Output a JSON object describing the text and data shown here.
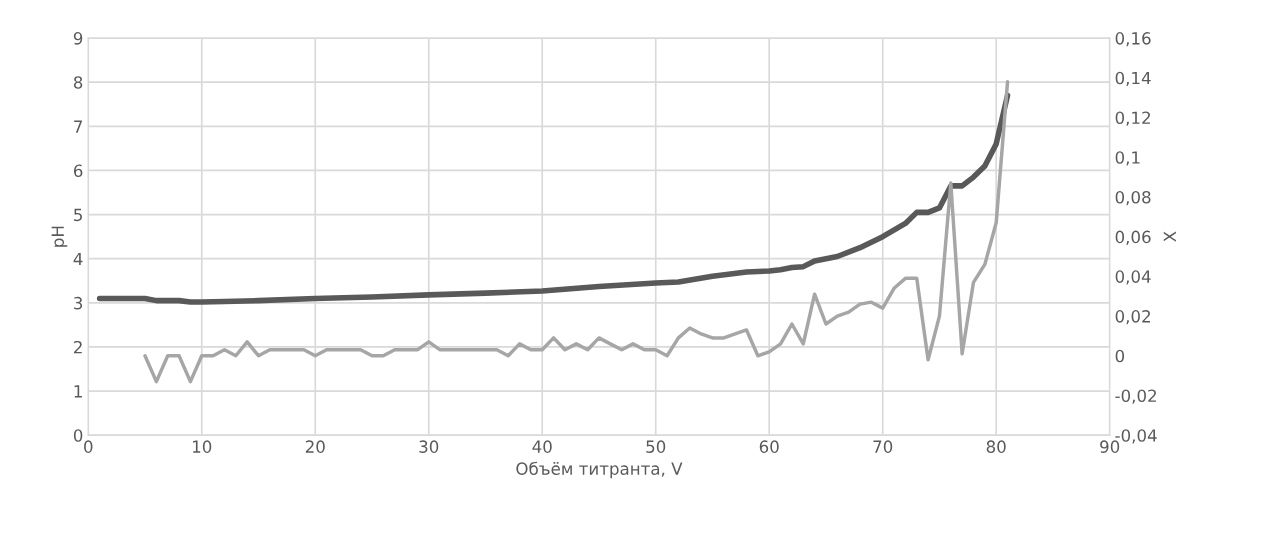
{
  "chart_data": {
    "type": "line",
    "xlabel": "Объём титранта, V",
    "ylabel": "pH",
    "y2label": "X",
    "xlim": [
      0,
      90
    ],
    "xticks": [
      0,
      10,
      20,
      30,
      40,
      50,
      60,
      70,
      80,
      90
    ],
    "ylim": [
      0,
      9
    ],
    "yticks": [
      0,
      1,
      2,
      3,
      4,
      5,
      6,
      7,
      8,
      9
    ],
    "y2lim": [
      -0.04,
      0.16
    ],
    "y2ticks": [
      {
        "value": -0.04,
        "label": "-0,04"
      },
      {
        "value": -0.02,
        "label": "-0,02"
      },
      {
        "value": 0,
        "label": "0"
      },
      {
        "value": 0.02,
        "label": "0,02"
      },
      {
        "value": 0.04,
        "label": "0,04"
      },
      {
        "value": 0.06,
        "label": "0,06"
      },
      {
        "value": 0.08,
        "label": "0,08"
      },
      {
        "value": 0.1,
        "label": "0,1"
      },
      {
        "value": 0.12,
        "label": "0,12"
      },
      {
        "value": 0.14,
        "label": "0,14"
      },
      {
        "value": 0.16,
        "label": "0,16"
      }
    ],
    "grid": true,
    "series": [
      {
        "color": "#595959",
        "x": [
          1,
          5,
          6,
          8,
          9,
          10,
          12,
          15,
          20,
          25,
          30,
          35,
          40,
          45,
          50,
          52,
          55,
          58,
          60,
          61,
          62,
          63,
          64,
          66,
          68,
          70,
          72,
          73,
          74,
          75,
          76,
          77,
          78,
          79,
          80,
          81
        ],
        "values": [
          3.1,
          3.1,
          3.05,
          3.05,
          3.02,
          3.02,
          3.03,
          3.05,
          3.1,
          3.13,
          3.18,
          3.22,
          3.27,
          3.37,
          3.45,
          3.47,
          3.6,
          3.7,
          3.72,
          3.75,
          3.8,
          3.82,
          3.95,
          4.05,
          4.25,
          4.5,
          4.8,
          5.05,
          5.05,
          5.15,
          5.65,
          5.65,
          5.85,
          6.1,
          6.6,
          7.7
        ]
      },
      {
        "color": "#a6a6a6",
        "axis": "y2",
        "x": [
          5,
          6,
          7,
          8,
          9,
          10,
          11,
          12,
          13,
          14,
          15,
          16,
          17,
          18,
          19,
          20,
          21,
          22,
          23,
          24,
          25,
          26,
          27,
          28,
          29,
          30,
          31,
          32,
          33,
          34,
          35,
          36,
          37,
          38,
          39,
          40,
          41,
          42,
          43,
          44,
          45,
          46,
          47,
          48,
          49,
          50,
          51,
          52,
          53,
          54,
          55,
          56,
          57,
          58,
          59,
          60,
          61,
          62,
          63,
          64,
          65,
          66,
          67,
          68,
          69,
          70,
          71,
          72,
          73,
          74,
          75,
          76,
          77,
          78,
          79,
          80,
          81
        ],
        "values": [
          0,
          -0.013,
          0,
          0,
          -0.013,
          0,
          0,
          0.003,
          0,
          0.007,
          0,
          0.003,
          0.003,
          0.003,
          0.003,
          0,
          0.003,
          0.003,
          0.003,
          0.003,
          0,
          0,
          0.003,
          0.003,
          0.003,
          0.007,
          0.003,
          0.003,
          0.003,
          0.003,
          0.003,
          0.003,
          0,
          0.006,
          0.003,
          0.003,
          0.009,
          0.003,
          0.006,
          0.003,
          0.009,
          0.006,
          0.003,
          0.006,
          0.003,
          0.003,
          0,
          0.009,
          0.014,
          0.011,
          0.009,
          0.009,
          0.011,
          0.013,
          0,
          0.002,
          0.006,
          0.016,
          0.006,
          0.031,
          0.016,
          0.02,
          0.022,
          0.026,
          0.027,
          0.024,
          0.034,
          0.039,
          0.039,
          -0.002,
          0.02,
          0.087,
          0.001,
          0.037,
          0.046,
          0.067,
          0.138
        ]
      }
    ]
  }
}
